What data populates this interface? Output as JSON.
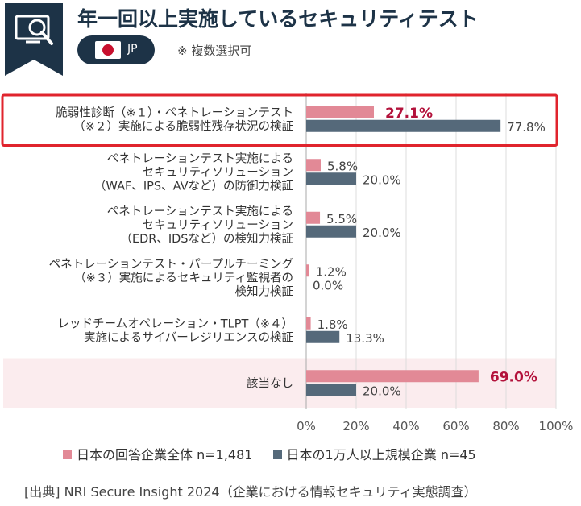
{
  "header": {
    "title": "年一回以上実施しているセキュリティテスト",
    "region_label": "JP",
    "note": "※ 複数選択可",
    "icon": "monitor-magnifier-icon"
  },
  "colors": {
    "navy": "#1d3347",
    "series_all": "#e28996",
    "series_large": "#55697a",
    "highlight": "#e0242d",
    "shade": "#fbecee",
    "emphasis": "#b3123b"
  },
  "chart_data": {
    "type": "bar",
    "orientation": "horizontal",
    "xlim": [
      0,
      100
    ],
    "ticks": [
      "0%",
      "20%",
      "40%",
      "60%",
      "80%",
      "100%"
    ],
    "categories": [
      [
        "脆弱性診断（※１）・ペネトレーションテスト",
        "（※２）実施による脆弱性残存状況の検証"
      ],
      [
        "ペネトレーションテスト実施による",
        "セキュリティソリューション",
        "（WAF、IPS、AVなど）の防御力検証"
      ],
      [
        "ペネトレーションテスト実施による",
        "セキュリティソリューション",
        "（EDR、IDSなど）の検知力検証"
      ],
      [
        "ペネトレーションテスト・パープルチーミング",
        "（※３）実施によるセキュリティ監視者の",
        "検知力検証"
      ],
      [
        "レッドチームオペレーション・TLPT（※４）",
        "実施によるサイバーレジリエンスの検証"
      ],
      [
        "該当なし"
      ]
    ],
    "series": [
      {
        "name": "日本の回答企業全体 n=1,481",
        "values": [
          27.1,
          5.8,
          5.5,
          1.2,
          1.8,
          69.0
        ],
        "labels": [
          "27.1%",
          "5.8%",
          "5.5%",
          "1.2%",
          "1.8%",
          "69.0%"
        ]
      },
      {
        "name": "日本の1万人以上規模企業 n=45",
        "values": [
          77.8,
          20.0,
          20.0,
          0.0,
          13.3,
          20.0
        ],
        "labels": [
          "77.8%",
          "20.0%",
          "20.0%",
          "0.0%",
          "13.3%",
          "20.0%"
        ]
      }
    ],
    "emphasized_labels": [
      [
        0,
        0
      ],
      [
        0,
        5
      ]
    ],
    "highlighted_category": 0,
    "shaded_category": 5,
    "grid": true,
    "legend_position": "bottom"
  },
  "footer": {
    "source": "[出典] NRI Secure Insight 2024（企業における情報セキュリティ実態調査）"
  }
}
